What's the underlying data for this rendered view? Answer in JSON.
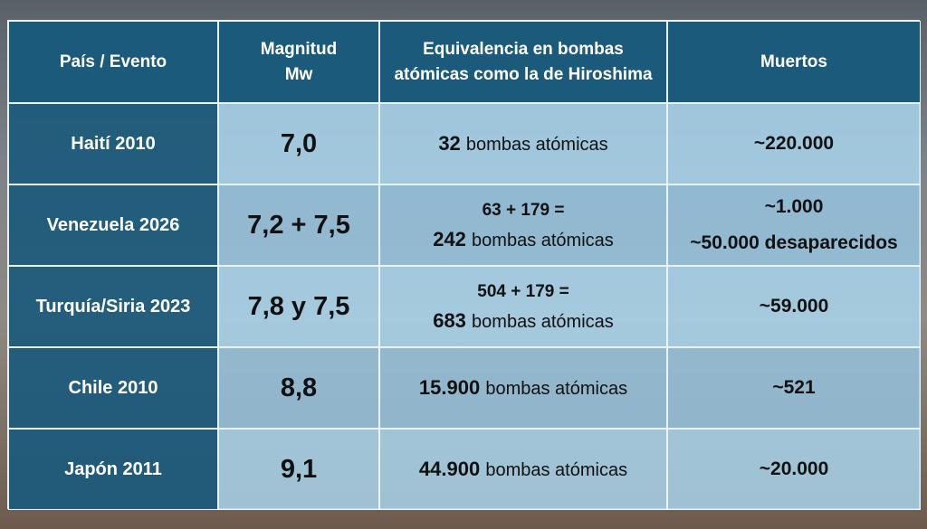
{
  "table": {
    "headers": [
      [
        "País / Evento"
      ],
      [
        "Magnitud",
        "Mw"
      ],
      [
        "Equivalencia en bombas atómicas como la de Hiroshima"
      ],
      [
        "Muertos"
      ]
    ],
    "rows": [
      {
        "event": "Haití 2010",
        "magnitude": "7,0",
        "equivalence": {
          "sum": null,
          "number": "32",
          "text": "bombas atómicas"
        },
        "deaths": [
          "~220.000"
        ]
      },
      {
        "event": "Venezuela 2026",
        "magnitude": "7,2 + 7,5",
        "equivalence": {
          "sum": "63 + 179 =",
          "number": "242",
          "text": "bombas atómicas"
        },
        "deaths": [
          "~1.000",
          "~50.000 desaparecidos"
        ]
      },
      {
        "event": "Turquía/Siria 2023",
        "magnitude": "7,8 y 7,5",
        "equivalence": {
          "sum": "504 + 179 =",
          "number": "683",
          "text": "bombas atómicas"
        },
        "deaths": [
          "~59.000"
        ]
      },
      {
        "event": "Chile 2010",
        "magnitude": "8,8",
        "equivalence": {
          "sum": null,
          "number": "15.900",
          "text": "bombas atómicas"
        },
        "deaths": [
          "~521"
        ]
      },
      {
        "event": "Japón 2011",
        "magnitude": "9,1",
        "equivalence": {
          "sum": null,
          "number": "44.900",
          "text": "bombas atómicas"
        },
        "deaths": [
          "~20.000"
        ]
      }
    ]
  }
}
